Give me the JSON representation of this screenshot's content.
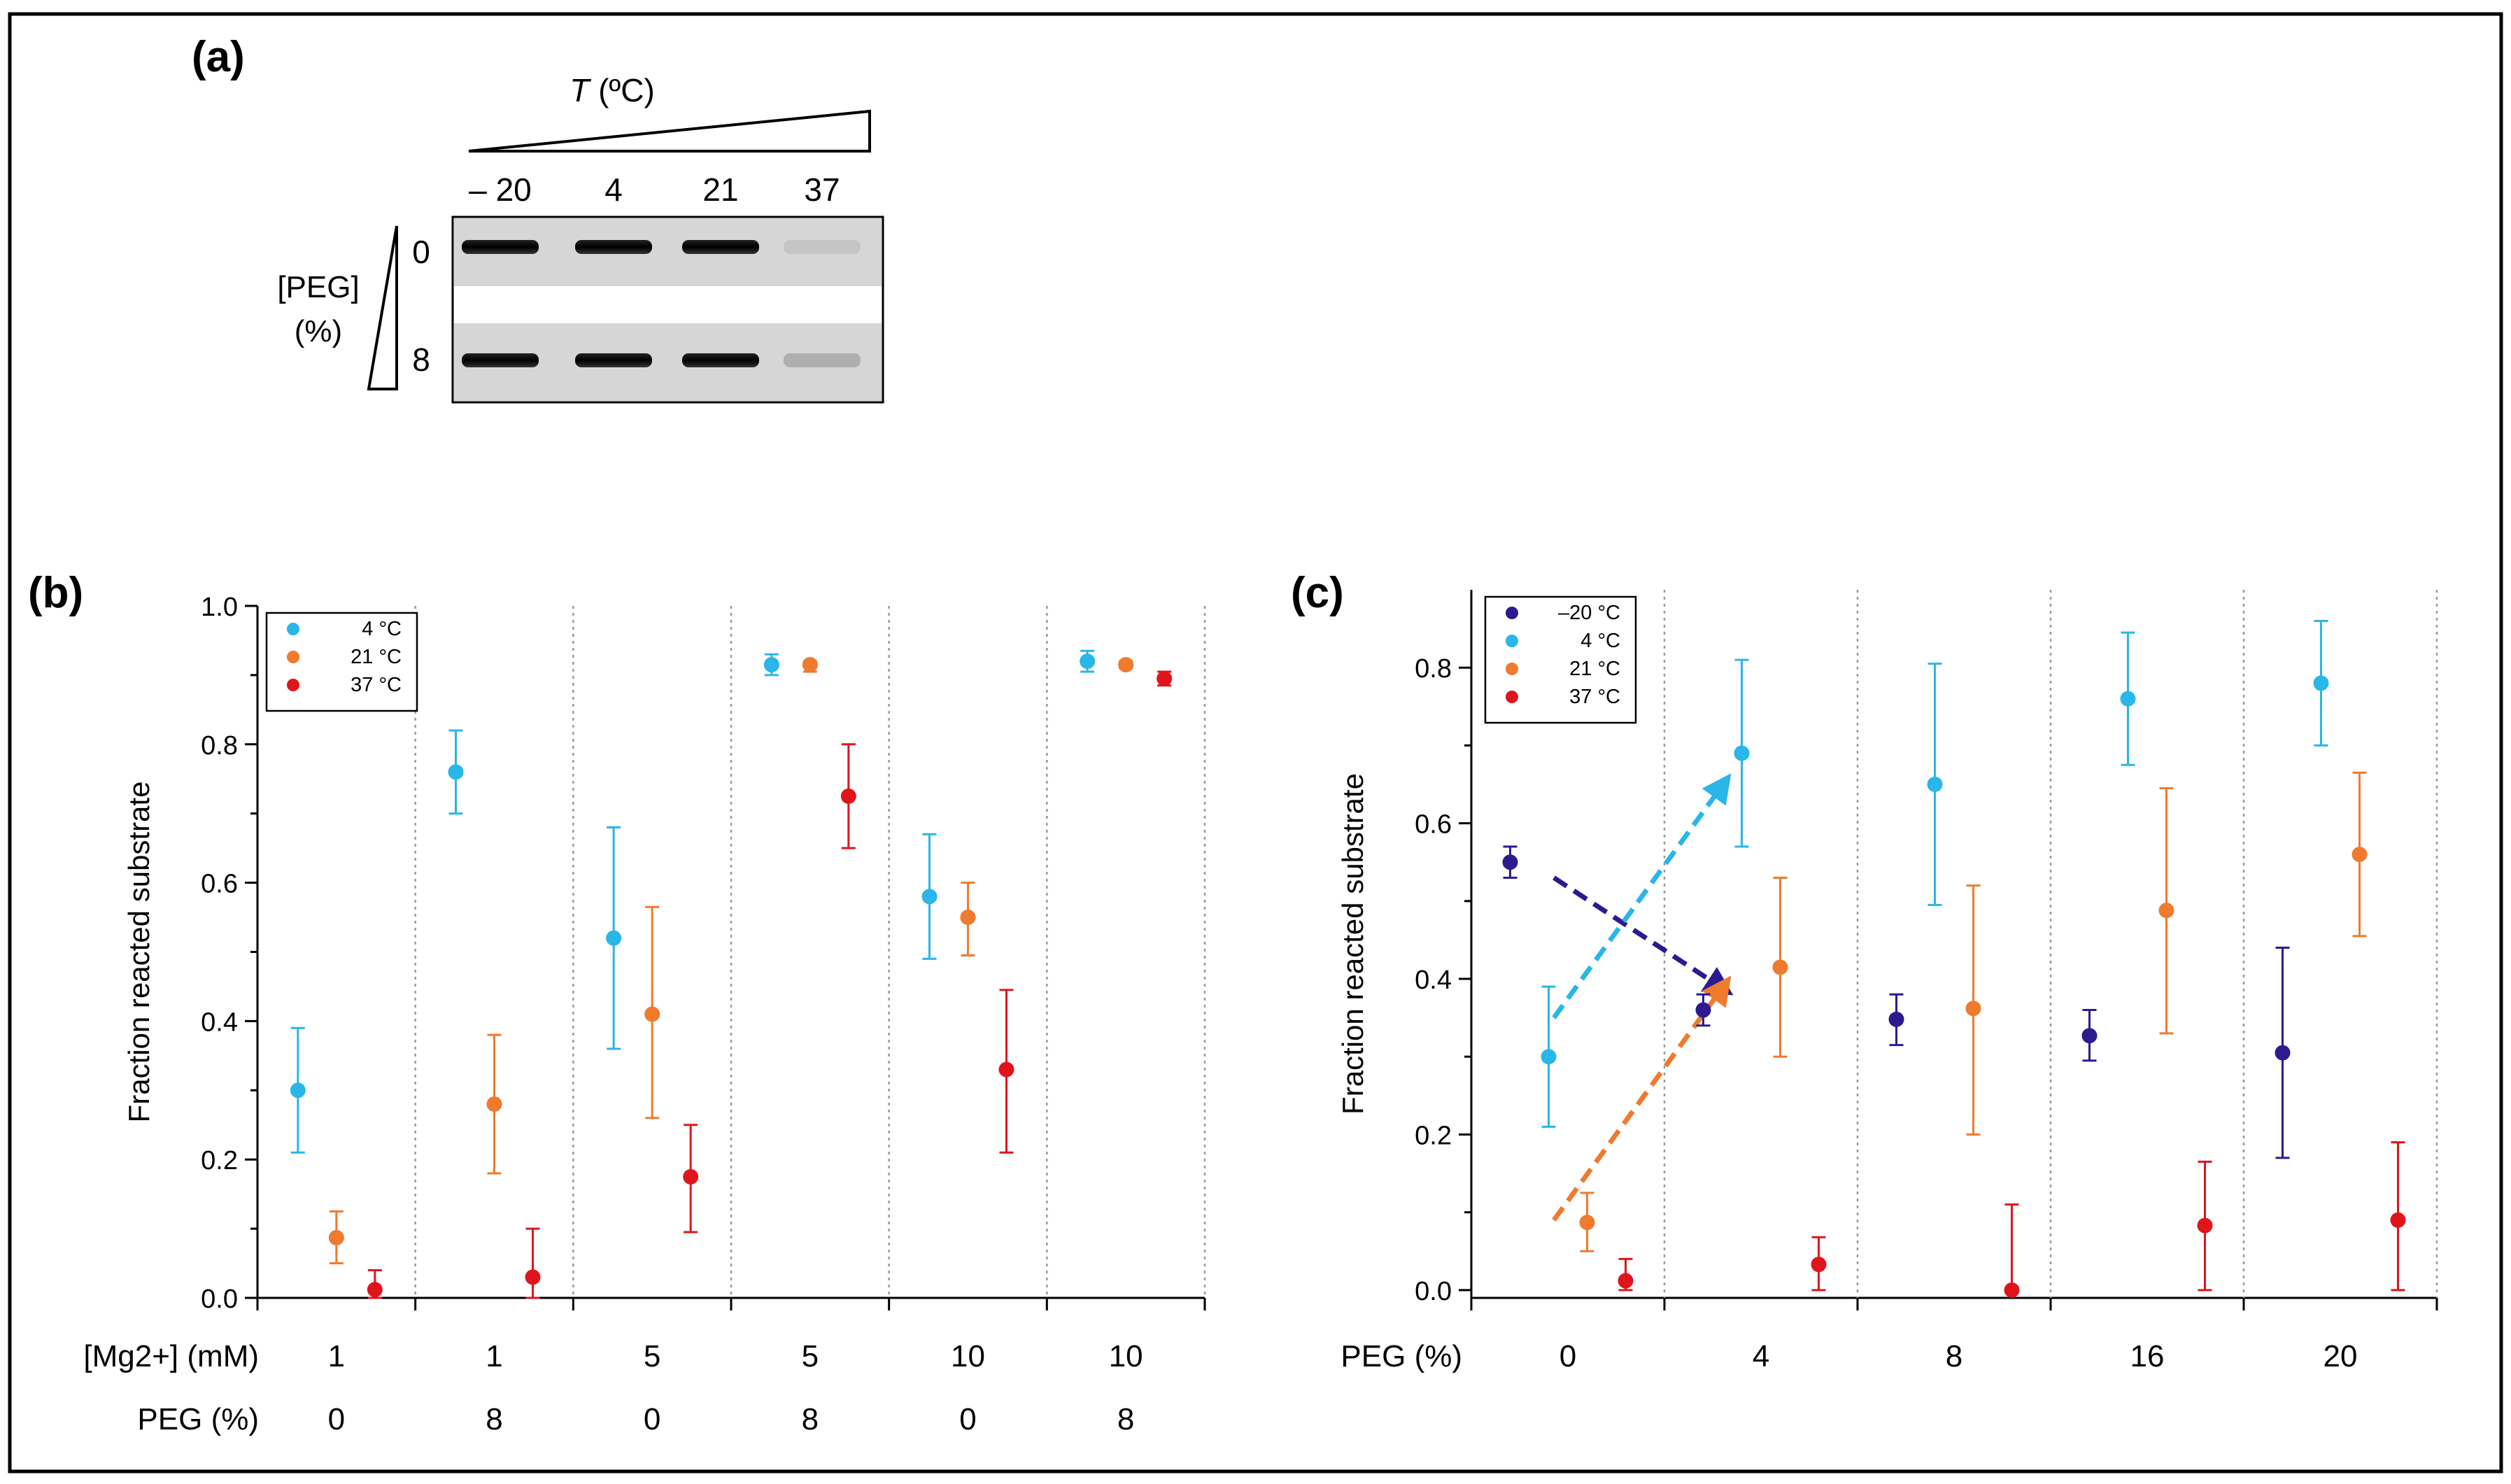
{
  "panels": {
    "a": {
      "label": "(a)",
      "temp_axis_label": "T",
      "temp_axis_unit": " (ºC)",
      "temp_values": [
        "– 20",
        "4",
        "21",
        "37"
      ],
      "peg_label_line1": "[PEG]",
      "peg_label_line2": "(%)",
      "peg_values": [
        "0",
        "8"
      ],
      "band_intensity": [
        [
          1,
          1,
          1,
          0.08
        ],
        [
          1,
          1,
          1,
          0.18
        ]
      ]
    },
    "b": {
      "label": "(b)",
      "row_labels": [
        "[Mg2+] (mM)",
        "PEG (%)"
      ],
      "groups": [
        {
          "mg": "1",
          "peg": "0"
        },
        {
          "mg": "1",
          "peg": "8"
        },
        {
          "mg": "5",
          "peg": "0"
        },
        {
          "mg": "5",
          "peg": "8"
        },
        {
          "mg": "10",
          "peg": "0"
        },
        {
          "mg": "10",
          "peg": "8"
        }
      ]
    },
    "c": {
      "label": "(c)",
      "row_label": "PEG (%)",
      "groups": [
        "0",
        "4",
        "8",
        "16",
        "20"
      ]
    }
  },
  "chart_data": [
    {
      "panel": "b",
      "type": "scatter",
      "ylabel": "Fraction reacted substrate",
      "ylim": [
        0,
        1.0
      ],
      "yticks": [
        "0.0",
        "0.2",
        "0.4",
        "0.6",
        "0.8",
        "1.0"
      ],
      "legend_position": "top-left",
      "series": [
        {
          "name": "4 °C",
          "color": "#29b6e8",
          "values": [
            0.3,
            0.76,
            0.52,
            0.915,
            0.58,
            0.92
          ],
          "err_low": [
            0.21,
            0.7,
            0.36,
            0.9,
            0.49,
            0.905
          ],
          "err_high": [
            0.39,
            0.82,
            0.68,
            0.93,
            0.67,
            0.935
          ]
        },
        {
          "name": "21 °C",
          "color": "#f07a2e",
          "values": [
            0.087,
            0.28,
            0.41,
            0.915,
            0.55,
            0.915
          ],
          "err_low": [
            0.05,
            0.18,
            0.26,
            0.905,
            0.495,
            0.91
          ],
          "err_high": [
            0.125,
            0.38,
            0.565,
            0.92,
            0.6,
            0.92
          ]
        },
        {
          "name": "37 °C",
          "color": "#e0151c",
          "values": [
            0.012,
            0.03,
            0.175,
            0.725,
            0.33,
            0.895
          ],
          "err_low": [
            0.0,
            0.0,
            0.095,
            0.65,
            0.21,
            0.885
          ],
          "err_high": [
            0.04,
            0.1,
            0.25,
            0.8,
            0.445,
            0.905
          ]
        }
      ]
    },
    {
      "panel": "c",
      "type": "scatter",
      "ylabel": "Fraction reacted substrate",
      "ylim": [
        -0.01,
        0.9
      ],
      "yticks": [
        "0.0",
        "0.2",
        "0.4",
        "0.6",
        "0.8"
      ],
      "legend_position": "top-left",
      "series": [
        {
          "name": "–20 °C",
          "color": "#2b1b8f",
          "values": [
            0.55,
            0.36,
            0.348,
            0.327,
            0.305
          ],
          "err_low": [
            0.53,
            0.34,
            0.315,
            0.295,
            0.17
          ],
          "err_high": [
            0.57,
            0.38,
            0.38,
            0.36,
            0.44
          ]
        },
        {
          "name": "4 °C",
          "color": "#29b6e8",
          "values": [
            0.3,
            0.69,
            0.65,
            0.76,
            0.78
          ],
          "err_low": [
            0.21,
            0.57,
            0.495,
            0.675,
            0.7
          ],
          "err_high": [
            0.39,
            0.81,
            0.805,
            0.845,
            0.86
          ]
        },
        {
          "name": "21 °C",
          "color": "#f07a2e",
          "values": [
            0.087,
            0.415,
            0.362,
            0.488,
            0.56
          ],
          "err_low": [
            0.05,
            0.3,
            0.2,
            0.33,
            0.455
          ],
          "err_high": [
            0.125,
            0.53,
            0.52,
            0.645,
            0.665
          ]
        },
        {
          "name": "37 °C",
          "color": "#e0151c",
          "values": [
            0.012,
            0.033,
            0.0,
            0.083,
            0.09
          ],
          "err_low": [
            0.0,
            0.0,
            0.0,
            0.0,
            0.0
          ],
          "err_high": [
            0.04,
            0.068,
            0.11,
            0.165,
            0.19
          ]
        }
      ],
      "arrows": [
        {
          "series": "–20 °C",
          "from": [
            0,
            0.53
          ],
          "to": [
            1,
            0.385
          ]
        },
        {
          "series": "4 °C",
          "from": [
            0,
            0.35
          ],
          "to": [
            1,
            0.655
          ]
        },
        {
          "series": "21 °C",
          "from": [
            0,
            0.09
          ],
          "to": [
            1,
            0.395
          ]
        }
      ]
    }
  ]
}
